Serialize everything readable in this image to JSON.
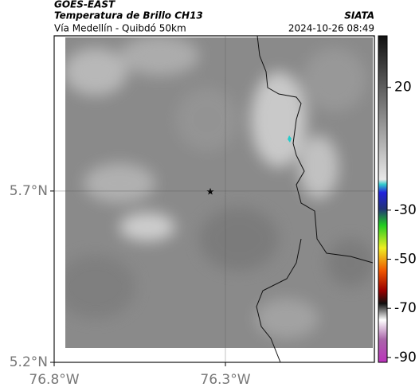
{
  "header": {
    "satellite": "GOES-EAST",
    "product": "Temperatura de Brillo CH13",
    "region": "Vía Medellín - Quibdó 50km",
    "source": "SIATA",
    "datetime": "2024-10-26 08:49"
  },
  "map": {
    "latlim": [
      5.2,
      6.153
    ],
    "lonlim": [
      -76.8,
      -75.865
    ],
    "latticks": [
      {
        "value": 5.7,
        "label": "5.7°N"
      },
      {
        "value": 5.2,
        "label": "5.2°N"
      }
    ],
    "lonticks": [
      {
        "value": -76.8,
        "label": "76.8°W"
      },
      {
        "value": -76.3,
        "label": "76.3°W"
      }
    ]
  },
  "colorbar": {
    "lim": [
      -92,
      41
    ],
    "ticks": [
      20,
      -30,
      -50,
      -70,
      -90
    ]
  }
}
